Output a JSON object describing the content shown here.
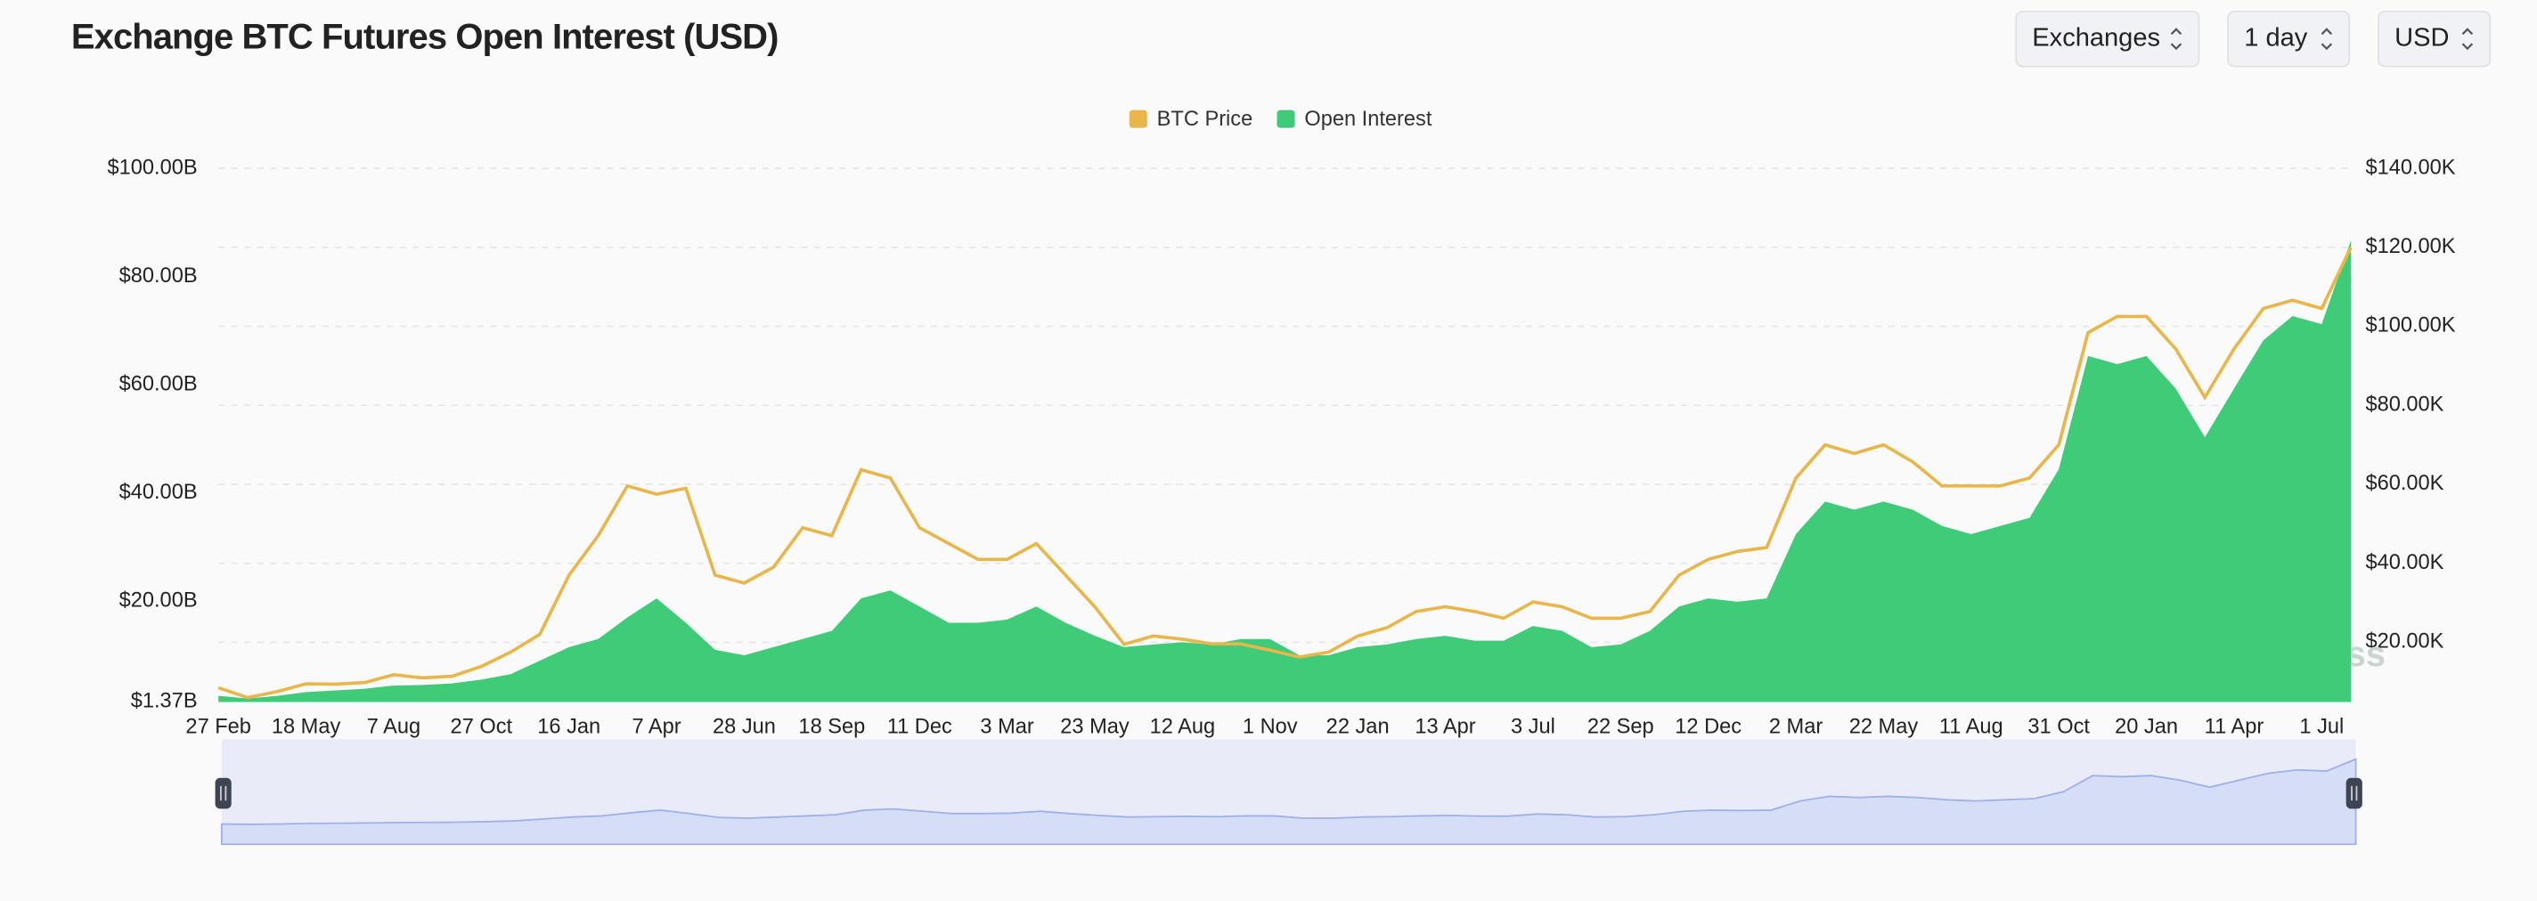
{
  "chart_data": {
    "type": "combo",
    "title": "Exchange BTC Futures Open Interest (USD)",
    "controls": [
      "Exchanges",
      "1 day",
      "USD"
    ],
    "watermark": "coinglass",
    "categories": [
      "27 Feb",
      null,
      null,
      "18 May",
      null,
      null,
      "7 Aug",
      null,
      null,
      "27 Oct",
      null,
      null,
      "16 Jan",
      null,
      null,
      "7 Apr",
      null,
      null,
      "28 Jun",
      null,
      null,
      "18 Sep",
      null,
      null,
      "11 Dec",
      null,
      null,
      "3 Mar",
      null,
      null,
      "23 May",
      null,
      null,
      "12 Aug",
      null,
      null,
      "1 Nov",
      null,
      null,
      "22 Jan",
      null,
      null,
      "13 Apr",
      null,
      null,
      "3 Jul",
      null,
      null,
      "22 Sep",
      null,
      null,
      "12 Dec",
      null,
      null,
      "2 Mar",
      null,
      null,
      "22 May",
      null,
      null,
      "11 Aug",
      null,
      null,
      "31 Oct",
      null,
      null,
      "20 Jan",
      null,
      null,
      "11 Apr",
      null,
      null,
      "1 Jul",
      null
    ],
    "series": [
      {
        "name": "BTC Price",
        "color": "#e8b64a",
        "type": "line",
        "axis": "y2",
        "values": [
          8.5,
          6.0,
          7.5,
          9.5,
          9.4,
          9.8,
          11.8,
          11.0,
          11.4,
          13.9,
          17.5,
          22.0,
          37.0,
          47.0,
          59.6,
          57.5,
          59.0,
          37.0,
          35.0,
          39.0,
          49.0,
          47.0,
          63.7,
          61.6,
          49.0,
          45.0,
          41.0,
          41.0,
          45.0,
          37.0,
          29.0,
          19.5,
          21.6,
          20.8,
          19.6,
          19.6,
          18.0,
          16.3,
          17.5,
          21.6,
          23.7,
          27.8,
          29.0,
          27.8,
          26.1,
          30.2,
          29.0,
          26.1,
          26.1,
          27.8,
          37.0,
          41.0,
          43.0,
          44.0,
          61.6,
          70.0,
          67.8,
          70.0,
          65.7,
          59.6,
          59.6,
          59.6,
          61.6,
          70.0,
          98.4,
          102.5,
          102.5,
          94.3,
          82.0,
          94.3,
          104.5,
          106.6,
          104.5,
          120.0
        ]
      },
      {
        "name": "Open Interest",
        "color": "#3fcb78",
        "type": "area",
        "axis": "y",
        "values": [
          2.5,
          2.0,
          2.5,
          3.2,
          3.5,
          3.8,
          4.4,
          4.5,
          4.8,
          5.5,
          6.5,
          9.0,
          11.5,
          13.0,
          17.0,
          20.5,
          16.0,
          11.0,
          10.0,
          11.5,
          13.0,
          14.5,
          20.5,
          22.0,
          19.0,
          16.0,
          16.0,
          16.6,
          19.0,
          16.0,
          13.6,
          11.5,
          12.0,
          12.4,
          12.0,
          13.0,
          13.0,
          10.0,
          10.0,
          11.5,
          12.0,
          13.0,
          13.6,
          12.7,
          12.7,
          15.4,
          14.5,
          11.5,
          12.0,
          14.5,
          19.0,
          20.5,
          19.9,
          20.5,
          32.4,
          38.4,
          36.9,
          38.4,
          36.9,
          33.9,
          32.4,
          33.9,
          35.4,
          44.4,
          65.3,
          63.8,
          65.3,
          59.3,
          50.3,
          59.3,
          68.2,
          72.7,
          71.2,
          86.7
        ]
      }
    ],
    "ylim": [
      1.37,
      100
    ],
    "yticks": [
      {
        "value": 1.37,
        "label": "$1.37B"
      },
      {
        "value": 20,
        "label": "$20.00B"
      },
      {
        "value": 40,
        "label": "$40.00B"
      },
      {
        "value": 60,
        "label": "$60.00B"
      },
      {
        "value": 80,
        "label": "$80.00B"
      },
      {
        "value": 100,
        "label": "$100.00B"
      }
    ],
    "y2lim": [
      4.9,
      140
    ],
    "y2ticks": [
      {
        "value": 20,
        "label": "$20.00K"
      },
      {
        "value": 40,
        "label": "$40.00K"
      },
      {
        "value": 60,
        "label": "$60.00K"
      },
      {
        "value": 80,
        "label": "$80.00K"
      },
      {
        "value": 100,
        "label": "$100.00K"
      },
      {
        "value": 120,
        "label": "$120.00K"
      },
      {
        "value": 140,
        "label": "$140.00K"
      }
    ],
    "grid": true,
    "legend": "top"
  }
}
